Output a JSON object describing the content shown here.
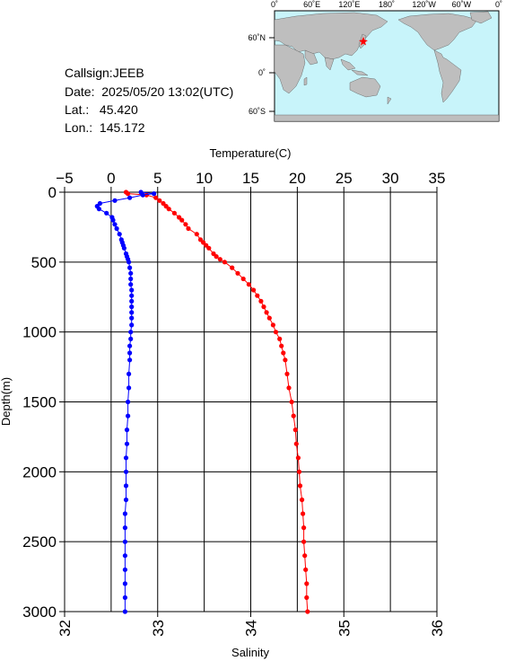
{
  "info": {
    "callsign": "Callsign:JEEB",
    "date": "Date:  2025/05/20 13:02(UTC)",
    "lat": "Lat.:   45.420",
    "lon": "Lon.:  145.172"
  },
  "map": {
    "lon_labels": [
      "0˚",
      "60˚E",
      "120˚E",
      "180˚",
      "120˚W",
      "60˚W",
      "0˚"
    ],
    "lat_labels": [
      "60˚N",
      "0˚",
      "60˚S"
    ],
    "station_color": "#ff0000",
    "ocean_color": "#c8f4fa",
    "land_color": "#bebebe"
  },
  "chart_data": {
    "type": "scatter",
    "ylabel": "Depth(m)",
    "ylim": [
      3000,
      0
    ],
    "y_ticks": [
      0,
      500,
      1000,
      1500,
      2000,
      2500,
      3000
    ],
    "top_axis": {
      "label": "Temperature(C)",
      "range": [
        -5,
        35
      ],
      "ticks": [
        -5,
        0,
        5,
        10,
        15,
        20,
        25,
        30,
        35
      ],
      "tick_labels": [
        "−5",
        "0",
        "5",
        "10",
        "15",
        "20",
        "25",
        "30",
        "35"
      ]
    },
    "bottom_axis": {
      "label": "Salinity",
      "range": [
        32,
        36
      ],
      "ticks": [
        32,
        33,
        34,
        35,
        36
      ],
      "tick_labels": [
        "32",
        "33",
        "34",
        "35",
        "36"
      ]
    },
    "grid": true,
    "series": [
      {
        "axis": "bottom",
        "color": "#ff0000",
        "depth": [
          0,
          10,
          20,
          40,
          60,
          80,
          100,
          120,
          150,
          180,
          200,
          230,
          260,
          300,
          340,
          360,
          380,
          400,
          440,
          460,
          480,
          500,
          540,
          580,
          620,
          660,
          700,
          740,
          780,
          820,
          860,
          900,
          950,
          1000,
          1050,
          1100,
          1150,
          1200,
          1300,
          1400,
          1500,
          1600,
          1700,
          1800,
          1900,
          2000,
          2100,
          2200,
          2300,
          2400,
          2500,
          2600,
          2700,
          2800,
          2900,
          3000
        ],
        "values": [
          32.66,
          32.68,
          32.88,
          32.98,
          33.02,
          33.06,
          33.09,
          33.12,
          33.18,
          33.23,
          33.26,
          33.3,
          33.33,
          33.42,
          33.46,
          33.49,
          33.52,
          33.55,
          33.6,
          33.63,
          33.67,
          33.72,
          33.8,
          33.86,
          33.92,
          33.98,
          34.03,
          34.07,
          34.11,
          34.14,
          34.17,
          34.2,
          34.24,
          34.27,
          34.31,
          34.33,
          34.35,
          34.37,
          34.39,
          34.41,
          34.44,
          34.46,
          34.48,
          34.49,
          34.51,
          34.52,
          34.53,
          34.55,
          34.56,
          34.57,
          34.57,
          34.58,
          34.59,
          34.6,
          34.6,
          34.61
        ]
      },
      {
        "axis": "top",
        "color": "#0000ff",
        "depth": [
          0,
          10,
          20,
          40,
          60,
          80,
          100,
          120,
          150,
          180,
          200,
          230,
          260,
          300,
          340,
          360,
          380,
          400,
          440,
          460,
          480,
          500,
          540,
          580,
          620,
          660,
          700,
          740,
          780,
          820,
          860,
          900,
          950,
          1000,
          1050,
          1100,
          1150,
          1200,
          1300,
          1400,
          1500,
          1600,
          1700,
          1800,
          1900,
          2000,
          2100,
          2200,
          2300,
          2400,
          2500,
          2600,
          2700,
          2800,
          2900,
          3000
        ],
        "values": [
          3.2,
          4.6,
          3.4,
          2.0,
          0.4,
          -1.2,
          -1.5,
          -1.3,
          -0.5,
          0.1,
          0.2,
          0.4,
          0.6,
          0.9,
          1.1,
          1.2,
          1.3,
          1.4,
          1.6,
          1.7,
          1.8,
          1.9,
          2.0,
          2.1,
          2.1,
          2.1,
          2.2,
          2.2,
          2.2,
          2.2,
          2.2,
          2.2,
          2.2,
          2.1,
          2.1,
          2.0,
          2.0,
          2.0,
          1.9,
          1.9,
          1.8,
          1.8,
          1.7,
          1.7,
          1.6,
          1.6,
          1.6,
          1.6,
          1.5,
          1.5,
          1.5,
          1.5,
          1.5,
          1.5,
          1.5,
          1.5
        ]
      }
    ]
  }
}
